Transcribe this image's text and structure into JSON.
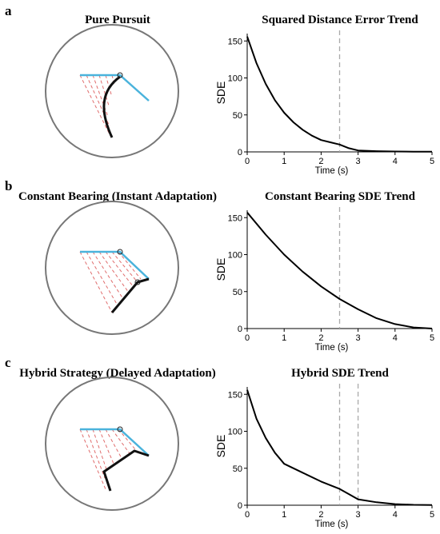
{
  "panels": [
    {
      "letter": "a",
      "diagram_title": "Pure Pursuit",
      "chart_title": "Squared Distance Error Trend"
    },
    {
      "letter": "b",
      "diagram_title": "Constant Bearing (Instant Adaptation)",
      "chart_title": "Constant Bearing SDE Trend"
    },
    {
      "letter": "c",
      "diagram_title": "Hybrid Strategy (Delayed Adaptation)",
      "chart_title": "Hybrid SDE Trend"
    }
  ],
  "colors": {
    "target_path": "#4ab3dc",
    "pursuer_path": "#111111",
    "sight_lines": "#e06d6d",
    "circle": "#777777",
    "vline": "#aaaaaa"
  },
  "chart_data": [
    {
      "type": "line",
      "title": "Squared Distance Error Trend",
      "xlabel": "Time (s)",
      "ylabel": "SDE",
      "xlim": [
        0,
        5
      ],
      "ylim": [
        0,
        160
      ],
      "xticks": [
        0,
        1,
        2,
        3,
        4,
        5
      ],
      "yticks": [
        0,
        50,
        100,
        150
      ],
      "vlines": [
        2.5
      ],
      "series": [
        {
          "x": [
            0,
            0.25,
            0.5,
            0.75,
            1.0,
            1.25,
            1.5,
            1.75,
            2.0,
            2.25,
            2.5,
            2.75,
            3.0,
            3.5,
            4.0,
            4.5,
            5.0
          ],
          "values": [
            156,
            120,
            92,
            70,
            53,
            40,
            30,
            22,
            16,
            13,
            10,
            5,
            2,
            1,
            0.5,
            0.3,
            0.2
          ]
        }
      ]
    },
    {
      "type": "line",
      "title": "Constant Bearing SDE Trend",
      "xlabel": "Time (s)",
      "ylabel": "SDE",
      "xlim": [
        0,
        5
      ],
      "ylim": [
        0,
        160
      ],
      "xticks": [
        0,
        1,
        2,
        3,
        4,
        5
      ],
      "yticks": [
        0,
        50,
        100,
        150
      ],
      "vlines": [
        2.5
      ],
      "series": [
        {
          "x": [
            0,
            0.5,
            1.0,
            1.5,
            2.0,
            2.5,
            3.0,
            3.5,
            4.0,
            4.5,
            5.0
          ],
          "values": [
            157,
            127,
            100,
            77,
            57,
            40,
            26,
            14,
            6,
            1.5,
            0
          ]
        }
      ]
    },
    {
      "type": "line",
      "title": "Hybrid SDE Trend",
      "xlabel": "Time (s)",
      "ylabel": "SDE",
      "xlim": [
        0,
        5
      ],
      "ylim": [
        0,
        160
      ],
      "xticks": [
        0,
        1,
        2,
        3,
        4,
        5
      ],
      "yticks": [
        0,
        50,
        100,
        150
      ],
      "vlines": [
        2.5,
        3.0
      ],
      "series": [
        {
          "x": [
            0,
            0.25,
            0.5,
            0.75,
            1.0,
            1.5,
            2.0,
            2.5,
            2.75,
            3.0,
            3.5,
            4.0,
            4.5,
            5.0
          ],
          "values": [
            156,
            117,
            91,
            71,
            56,
            44,
            32,
            22,
            15,
            8,
            4,
            1.5,
            0.5,
            0.2
          ]
        }
      ]
    }
  ]
}
